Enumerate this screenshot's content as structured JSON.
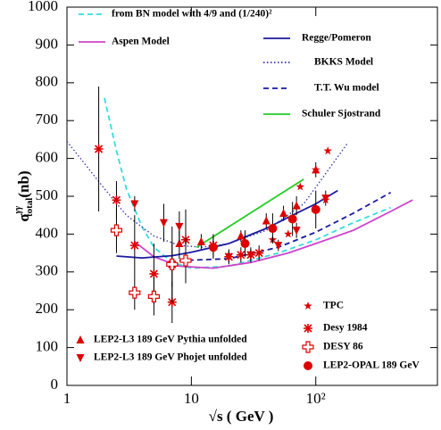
{
  "chart_data": {
    "type": "line",
    "x_label": "√s ( GeV )",
    "y_label": {
      "symbol": "σ",
      "superscript": "γγ",
      "subscript": "total",
      "unit": "(nb)"
    },
    "xlog": true,
    "xlim": [
      1,
      950
    ],
    "ylim": [
      0,
      1000
    ],
    "xticks": [
      1,
      10,
      {
        "value": 100,
        "label": "10²"
      }
    ],
    "yticks": [
      0,
      100,
      200,
      300,
      400,
      500,
      600,
      700,
      800,
      900,
      1000
    ],
    "series": [
      {
        "name": "from BN model with 4/9 and (1/240)²",
        "type": "line",
        "style": "dashed",
        "color": "#33dddd",
        "x": [
          2,
          2.5,
          3,
          4,
          5,
          7,
          10,
          20,
          50,
          100,
          200,
          400
        ],
        "values": [
          760,
          620,
          520,
          420,
          365,
          325,
          310,
          315,
          350,
          385,
          430,
          470
        ]
      },
      {
        "name": "Aspen Model",
        "type": "line",
        "style": "solid",
        "color": "#cc44cc",
        "x": [
          3.5,
          5,
          8,
          15,
          30,
          60,
          100,
          200,
          400,
          600
        ],
        "values": [
          380,
          340,
          315,
          310,
          325,
          350,
          375,
          410,
          460,
          490
        ]
      },
      {
        "name": "Regge/Pomeron",
        "type": "line",
        "style": "solid",
        "color": "#1a1aa0",
        "x": [
          2.5,
          4,
          7,
          10,
          20,
          40,
          70,
          100,
          150
        ],
        "values": [
          342,
          337,
          343,
          352,
          375,
          415,
          455,
          480,
          515
        ]
      },
      {
        "name": "BKKS Model",
        "type": "line",
        "style": "dotted",
        "color": "#3333aa",
        "x": [
          1,
          2,
          3,
          5,
          8,
          12,
          20,
          40,
          80,
          120,
          180
        ],
        "values": [
          645,
          520,
          450,
          395,
          370,
          365,
          375,
          410,
          480,
          560,
          640
        ]
      },
      {
        "name": "T.T. Wu model",
        "type": "line",
        "style": "dashed",
        "color": "#1a1aa0",
        "x": [
          8,
          20,
          50,
          100,
          200,
          400
        ],
        "values": [
          330,
          335,
          365,
          405,
          455,
          510
        ]
      },
      {
        "name": "Schuler Sjostrand",
        "type": "line",
        "style": "solid",
        "color": "#22cc22",
        "x": [
          11,
          80
        ],
        "values": [
          365,
          545
        ]
      },
      {
        "name": "TPC",
        "type": "scatter",
        "marker": "star",
        "color": "#dd0000",
        "x": [
          75,
          100,
          125,
          120,
          60,
          45
        ],
        "values": [
          525,
          570,
          620,
          490,
          400,
          385
        ]
      },
      {
        "name": "Desy 1984",
        "type": "scatter",
        "marker": "asterisk",
        "color": "#dd0000",
        "x": [
          1.8,
          2.5,
          3.5,
          5,
          7,
          7,
          9,
          15,
          20,
          25,
          30,
          35
        ],
        "values": [
          625,
          490,
          370,
          295,
          220,
          320,
          385,
          370,
          340,
          345,
          345,
          350
        ],
        "errors": [
          165,
          50,
          80,
          80,
          55,
          100,
          80,
          30,
          20,
          20,
          20,
          20
        ]
      },
      {
        "name": "DESY 86",
        "type": "scatter",
        "marker": "open-cross",
        "color": "#dd0000",
        "x": [
          2.5,
          3.5,
          5,
          7,
          9
        ],
        "values": [
          410,
          245,
          235,
          320,
          330
        ],
        "errors": [
          60,
          45,
          50,
          60,
          60
        ]
      },
      {
        "name": "LEP2-OPAL 189 GeV",
        "type": "scatter",
        "marker": "circle",
        "color": "#dd0000",
        "x": [
          15,
          27,
          45,
          65,
          100
        ],
        "values": [
          365,
          375,
          415,
          440,
          465
        ],
        "errors": [
          30,
          35,
          40,
          45,
          50
        ]
      },
      {
        "name": "LEP2-L3 189 GeV Pythia unfolded",
        "type": "scatter",
        "marker": "triangle-up",
        "color": "#dd0000",
        "x": [
          8,
          12,
          25,
          40,
          55,
          70,
          100
        ],
        "values": [
          375,
          380,
          395,
          435,
          455,
          475,
          570
        ],
        "errors": [
          40,
          20,
          15,
          20,
          20,
          25,
          20
        ]
      },
      {
        "name": "LEP2-L3 189 GeV Phojet unfolded",
        "type": "scatter",
        "marker": "triangle-down",
        "color": "#dd0000",
        "x": [
          3.5,
          6,
          8,
          20,
          30,
          50,
          70,
          120
        ],
        "values": [
          480,
          430,
          420,
          340,
          345,
          370,
          410,
          495
        ],
        "errors": [
          20,
          50,
          40,
          15,
          15,
          15,
          20,
          20
        ]
      }
    ]
  }
}
